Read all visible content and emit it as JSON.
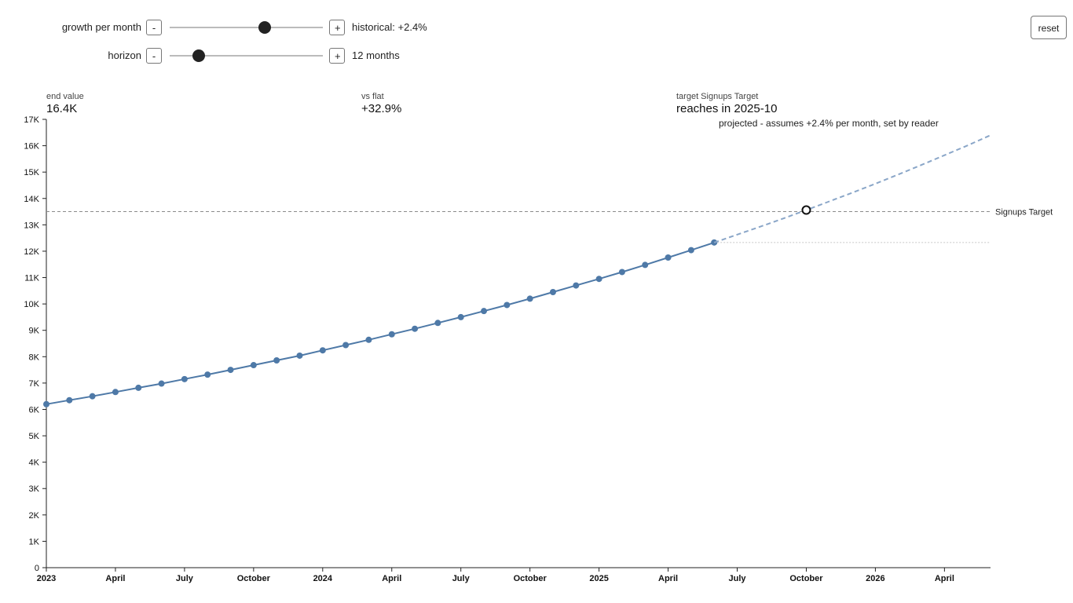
{
  "controls": {
    "growth": {
      "label": "growth per month",
      "minus": "-",
      "plus": "+",
      "note": "historical: +2.4%",
      "value_fraction": 0.62
    },
    "horizon": {
      "label": "horizon",
      "minus": "-",
      "plus": "+",
      "note": "12 months",
      "value_fraction": 0.19
    },
    "reset_label": "reset"
  },
  "stats": {
    "end_value": {
      "label": "end value",
      "value": "16.4K"
    },
    "vs_flat": {
      "label": "vs flat",
      "value": "+32.9%"
    },
    "target": {
      "label": "target Signups Target",
      "value": "reaches in 2025-10"
    }
  },
  "chart_data": {
    "type": "line",
    "annotation": "projected - assumes +2.4% per month, set by reader",
    "ylim": [
      0,
      17000
    ],
    "yticks": [
      0,
      1000,
      2000,
      3000,
      4000,
      5000,
      6000,
      7000,
      8000,
      9000,
      10000,
      11000,
      12000,
      13000,
      14000,
      15000,
      16000,
      17000
    ],
    "ytick_labels": [
      "0",
      "1K",
      "2K",
      "3K",
      "4K",
      "5K",
      "6K",
      "7K",
      "8K",
      "9K",
      "10K",
      "11K",
      "12K",
      "13K",
      "14K",
      "15K",
      "16K",
      "17K"
    ],
    "xlim": [
      "2023-01",
      "2026-06"
    ],
    "xticks": [
      "2023-01",
      "2023-04",
      "2023-07",
      "2023-10",
      "2024-01",
      "2024-04",
      "2024-07",
      "2024-10",
      "2025-01",
      "2025-04",
      "2025-07",
      "2025-10",
      "2026-01",
      "2026-04"
    ],
    "xtick_labels": [
      "2023",
      "April",
      "July",
      "October",
      "2024",
      "April",
      "July",
      "October",
      "2025",
      "April",
      "July",
      "October",
      "2026",
      "April"
    ],
    "series": [
      {
        "role": "historical",
        "x": [
          "2023-01",
          "2023-02",
          "2023-03",
          "2023-04",
          "2023-05",
          "2023-06",
          "2023-07",
          "2023-08",
          "2023-09",
          "2023-10",
          "2023-11",
          "2023-12",
          "2024-01",
          "2024-02",
          "2024-03",
          "2024-04",
          "2024-05",
          "2024-06",
          "2024-07",
          "2024-08",
          "2024-09",
          "2024-10",
          "2024-11",
          "2024-12",
          "2025-01",
          "2025-02",
          "2025-03",
          "2025-04",
          "2025-05",
          "2025-06"
        ],
        "y": [
          6200,
          6350,
          6500,
          6660,
          6820,
          6980,
          7150,
          7320,
          7500,
          7680,
          7860,
          8040,
          8240,
          8440,
          8640,
          8850,
          9060,
          9280,
          9500,
          9730,
          9960,
          10200,
          10450,
          10700,
          10950,
          11210,
          11480,
          11760,
          12040,
          12330
        ],
        "color": "#4e79a7"
      },
      {
        "role": "projected",
        "x": [
          "2025-06",
          "2025-07",
          "2025-08",
          "2025-09",
          "2025-10",
          "2025-11",
          "2025-12",
          "2026-01",
          "2026-02",
          "2026-03",
          "2026-04",
          "2026-05",
          "2026-06"
        ],
        "y": [
          12330,
          12630,
          12930,
          13240,
          13560,
          13890,
          14220,
          14560,
          14910,
          15270,
          15640,
          16010,
          16400
        ],
        "color": "#8aa6c8"
      }
    ],
    "flat_value": 12330,
    "target": {
      "label": "Signups Target",
      "value": 13500,
      "reached": "2025-10",
      "reached_value": 13560
    }
  }
}
